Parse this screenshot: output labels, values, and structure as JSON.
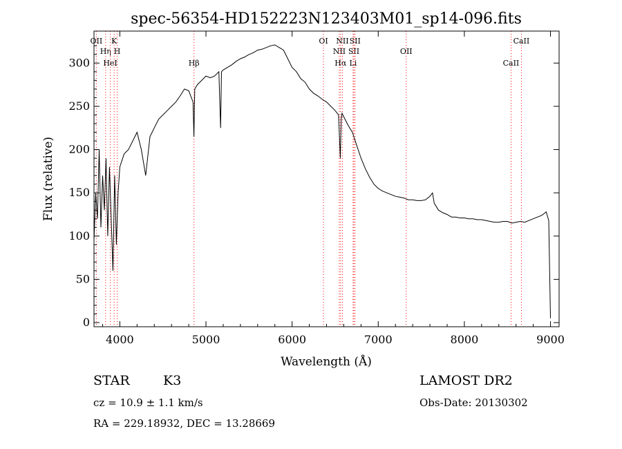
{
  "chart_data": {
    "type": "line",
    "title": "spec-56354-HD152223N123403M01_sp14-096.fits",
    "xlabel": "Wavelength (Å)",
    "ylabel": "Flux (relative)",
    "xlim": [
      3700,
      9100
    ],
    "ylim": [
      0,
      325
    ],
    "xticks": [
      4000,
      5000,
      6000,
      7000,
      8000,
      9000
    ],
    "yticks": [
      0,
      50,
      100,
      150,
      200,
      250,
      300
    ],
    "grid": false,
    "line_color": "#000000",
    "marker_color": "#ff0000",
    "series": [
      {
        "x": [
          3700,
          3720,
          3740,
          3760,
          3780,
          3800,
          3820,
          3840,
          3860,
          3880,
          3900,
          3920,
          3940,
          3960,
          3980,
          4000,
          4050,
          4100,
          4150,
          4200,
          4250,
          4300,
          4350,
          4400,
          4450,
          4500,
          4550,
          4600,
          4650,
          4700,
          4750,
          4800,
          4850,
          4860,
          4870,
          4900,
          4950,
          5000,
          5050,
          5100,
          5150,
          5170,
          5180,
          5200,
          5250,
          5300,
          5350,
          5400,
          5450,
          5500,
          5550,
          5600,
          5650,
          5700,
          5750,
          5800,
          5850,
          5900,
          5950,
          6000,
          6050,
          6100,
          6150,
          6200,
          6250,
          6300,
          6350,
          6400,
          6450,
          6500,
          6540,
          6560,
          6570,
          6580,
          6600,
          6650,
          6700,
          6750,
          6800,
          6850,
          6900,
          6950,
          7000,
          7050,
          7100,
          7150,
          7200,
          7250,
          7300,
          7350,
          7400,
          7450,
          7500,
          7550,
          7600,
          7630,
          7650,
          7700,
          7750,
          7800,
          7850,
          7900,
          7950,
          8000,
          8050,
          8100,
          8150,
          8200,
          8250,
          8300,
          8350,
          8400,
          8450,
          8500,
          8550,
          8600,
          8650,
          8700,
          8750,
          8800,
          8850,
          8900,
          8950,
          8980,
          8990,
          9000
        ],
        "y": [
          95,
          150,
          120,
          200,
          110,
          170,
          130,
          190,
          100,
          180,
          120,
          60,
          170,
          90,
          150,
          180,
          195,
          200,
          210,
          220,
          200,
          170,
          215,
          225,
          235,
          240,
          245,
          250,
          255,
          262,
          270,
          268,
          255,
          215,
          270,
          275,
          280,
          285,
          283,
          285,
          290,
          225,
          290,
          292,
          295,
          298,
          302,
          305,
          307,
          310,
          312,
          315,
          316,
          318,
          320,
          321,
          318,
          315,
          305,
          295,
          290,
          282,
          278,
          270,
          265,
          262,
          258,
          255,
          250,
          245,
          240,
          190,
          235,
          242,
          238,
          228,
          220,
          205,
          190,
          178,
          168,
          160,
          155,
          152,
          150,
          148,
          146,
          145,
          144,
          142,
          142,
          141,
          141,
          142,
          146,
          150,
          138,
          130,
          127,
          125,
          122,
          122,
          121,
          121,
          120,
          120,
          119,
          119,
          118,
          117,
          116,
          116,
          117,
          117,
          115,
          116,
          117,
          116,
          118,
          120,
          122,
          124,
          128,
          118,
          60,
          5
        ]
      }
    ],
    "spectral_lines": [
      {
        "label": "OII",
        "x": 3727
      },
      {
        "label": "Hη",
        "x": 3835
      },
      {
        "label": "HeI",
        "x": 3889
      },
      {
        "label": "K",
        "x": 3934
      },
      {
        "label": "H",
        "x": 3969
      },
      {
        "label": "Hβ",
        "x": 4861
      },
      {
        "label": "OI",
        "x": 6364
      },
      {
        "label": "NII",
        "x": 6548
      },
      {
        "label": "Hα",
        "x": 6563
      },
      {
        "label": "NII",
        "x": 6584
      },
      {
        "label": "SII",
        "x": 6717
      },
      {
        "label": "Li",
        "x": 6708
      },
      {
        "label": "SII",
        "x": 6731
      },
      {
        "label": "OII",
        "x": 7325
      },
      {
        "label": "CaII",
        "x": 8542
      },
      {
        "label": "CaII",
        "x": 8662
      }
    ]
  },
  "info": {
    "object_class": "STAR",
    "subclass": "K3",
    "survey": "LAMOST DR2",
    "cz": "cz = 10.9 ± 1.1 km/s",
    "obs_date": "Obs-Date: 20130302",
    "coords": "RA = 229.18932, DEC =  13.28669"
  }
}
